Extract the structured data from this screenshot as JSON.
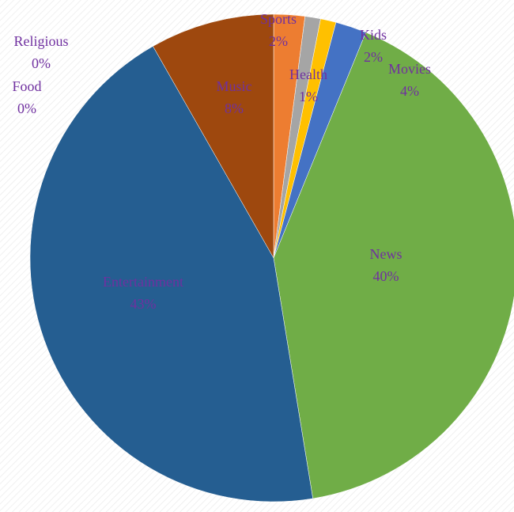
{
  "chart_data": {
    "type": "pie",
    "title": "",
    "label_color": "#7030a0",
    "background_pattern": "diagonal-hatch",
    "slices": [
      {
        "name": "Sports",
        "value": 2,
        "percent_label": "2%",
        "color": "#ed7d31"
      },
      {
        "name": "",
        "value": 1,
        "percent_label": "",
        "color": "#a5a5a5"
      },
      {
        "name": "Health",
        "value": 1,
        "percent_label": "1%",
        "color": "#ffc000"
      },
      {
        "name": "Kids",
        "value": 2,
        "percent_label": "2%",
        "color": "#4472c4"
      },
      {
        "name": "News",
        "value": 40,
        "percent_label": "40%",
        "color": "#70ad47"
      },
      {
        "name": "Entertainment",
        "value": 43,
        "percent_label": "43%",
        "color": "#255e91"
      },
      {
        "name": "Music",
        "value": 8,
        "percent_label": "8%",
        "color": "#9e480e"
      }
    ],
    "outside_labels": [
      {
        "name": "Religious",
        "percent_label": "0%"
      },
      {
        "name": "Food",
        "percent_label": "0%"
      },
      {
        "name": "Movies",
        "percent_label": "4%"
      }
    ]
  }
}
